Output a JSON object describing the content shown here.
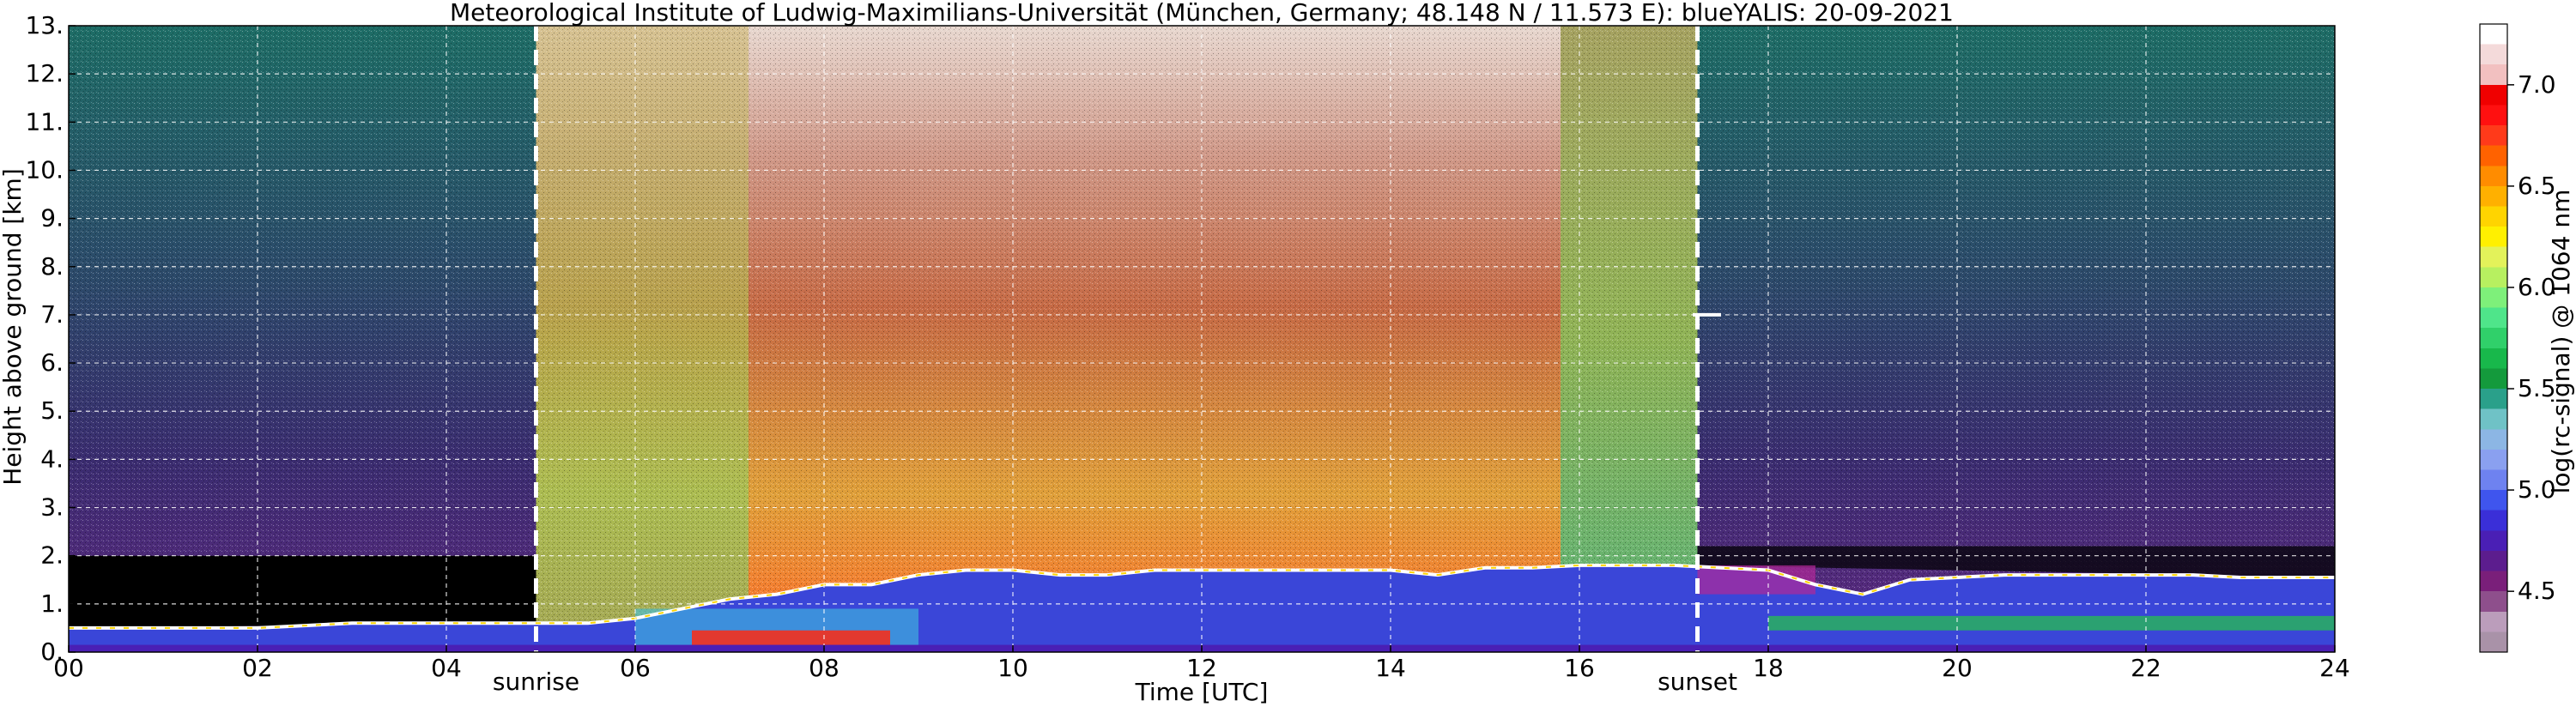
{
  "chart_data": {
    "type": "heatmap",
    "title": "Meteorological Institute of Ludwig-Maximilians-Universität (München, Germany; 48.148 N / 11.573 E):     blueYALIS: 20-09-2021",
    "xlabel": "Time [UTC]",
    "ylabel": "Height above ground [km]",
    "colorbar_label": "log(rc-signal) @ 1064 nm",
    "xlim": [
      0,
      24
    ],
    "ylim": [
      0,
      13
    ],
    "x_ticks": [
      {
        "value": 0,
        "label": "00"
      },
      {
        "value": 2,
        "label": "02"
      },
      {
        "value": 4,
        "label": "04"
      },
      {
        "value": 6,
        "label": "06"
      },
      {
        "value": 8,
        "label": "08"
      },
      {
        "value": 10,
        "label": "10"
      },
      {
        "value": 12,
        "label": "12"
      },
      {
        "value": 14,
        "label": "14"
      },
      {
        "value": 16,
        "label": "16"
      },
      {
        "value": 18,
        "label": "18"
      },
      {
        "value": 20,
        "label": "20"
      },
      {
        "value": 22,
        "label": "22"
      },
      {
        "value": 24,
        "label": "24"
      }
    ],
    "y_ticks": [
      {
        "value": 0,
        "label": "0."
      },
      {
        "value": 1,
        "label": "1."
      },
      {
        "value": 2,
        "label": "2."
      },
      {
        "value": 3,
        "label": "3."
      },
      {
        "value": 4,
        "label": "4."
      },
      {
        "value": 5,
        "label": "5."
      },
      {
        "value": 6,
        "label": "6."
      },
      {
        "value": 7,
        "label": "7."
      },
      {
        "value": 8,
        "label": "8."
      },
      {
        "value": 9,
        "label": "9."
      },
      {
        "value": 10,
        "label": "10."
      },
      {
        "value": 11,
        "label": "11."
      },
      {
        "value": 12,
        "label": "12."
      },
      {
        "value": 13,
        "label": "13."
      }
    ],
    "grid": true,
    "annotations": [
      {
        "label": "sunrise",
        "time": 4.95
      },
      {
        "label": "sunset",
        "time": 17.25
      }
    ],
    "colorbar": {
      "range": [
        4.2,
        7.3
      ],
      "ticks": [
        {
          "value": 4.5,
          "label": "4.5"
        },
        {
          "value": 5.0,
          "label": "5.0"
        },
        {
          "value": 5.5,
          "label": "5.5"
        },
        {
          "value": 6.0,
          "label": "6.0"
        },
        {
          "value": 6.5,
          "label": "6.5"
        },
        {
          "value": 7.0,
          "label": "7.0"
        }
      ],
      "colors": [
        "#a992a8",
        "#bb9dbb",
        "#8e4f8c",
        "#7a1f7a",
        "#5c1d8e",
        "#4a1fb5",
        "#3a2fd8",
        "#3f55ee",
        "#6e82f0",
        "#8aa0f0",
        "#8cb6e4",
        "#6fc2c6",
        "#2aa08a",
        "#149a3c",
        "#18b84b",
        "#30d06a",
        "#4fe58a",
        "#7ef07a",
        "#b7f060",
        "#e3f25a",
        "#fff000",
        "#ffd400",
        "#ffb000",
        "#ff8c00",
        "#ff6200",
        "#ff3a1a",
        "#ff1010",
        "#f00000",
        "#f2c0c0",
        "#f4dada",
        "#ffffff"
      ]
    },
    "structures": {
      "boundary_layer_top_km": [
        {
          "time": 0,
          "height": 0.5
        },
        {
          "time": 1,
          "height": 0.5
        },
        {
          "time": 2,
          "height": 0.5
        },
        {
          "time": 3,
          "height": 0.6
        },
        {
          "time": 4,
          "height": 0.6
        },
        {
          "time": 5,
          "height": 0.6
        },
        {
          "time": 5.5,
          "height": 0.6
        },
        {
          "time": 6,
          "height": 0.7
        },
        {
          "time": 6.5,
          "height": 0.9
        },
        {
          "time": 7,
          "height": 1.1
        },
        {
          "time": 7.5,
          "height": 1.2
        },
        {
          "time": 8,
          "height": 1.4
        },
        {
          "time": 8.5,
          "height": 1.4
        },
        {
          "time": 9,
          "height": 1.6
        },
        {
          "time": 9.5,
          "height": 1.7
        },
        {
          "time": 10,
          "height": 1.7
        },
        {
          "time": 10.5,
          "height": 1.6
        },
        {
          "time": 11,
          "height": 1.6
        },
        {
          "time": 11.5,
          "height": 1.7
        },
        {
          "time": 12,
          "height": 1.7
        },
        {
          "time": 12.5,
          "height": 1.7
        },
        {
          "time": 13,
          "height": 1.7
        },
        {
          "time": 13.5,
          "height": 1.7
        },
        {
          "time": 14,
          "height": 1.7
        },
        {
          "time": 14.5,
          "height": 1.6
        },
        {
          "time": 15,
          "height": 1.75
        },
        {
          "time": 15.5,
          "height": 1.75
        },
        {
          "time": 16,
          "height": 1.8
        },
        {
          "time": 16.5,
          "height": 1.8
        },
        {
          "time": 17,
          "height": 1.8
        },
        {
          "time": 17.5,
          "height": 1.75
        },
        {
          "time": 18,
          "height": 1.7
        },
        {
          "time": 18.5,
          "height": 1.4
        },
        {
          "time": 19,
          "height": 1.2
        },
        {
          "time": 19.5,
          "height": 1.5
        },
        {
          "time": 20,
          "height": 1.55
        },
        {
          "time": 20.5,
          "height": 1.6
        },
        {
          "time": 21,
          "height": 1.6
        },
        {
          "time": 21.5,
          "height": 1.6
        },
        {
          "time": 22,
          "height": 1.6
        },
        {
          "time": 22.5,
          "height": 1.6
        },
        {
          "time": 23,
          "height": 1.55
        },
        {
          "time": 24,
          "height": 1.55
        }
      ],
      "cloud_layer": {
        "time_start": 17.2,
        "time_end": 17.5,
        "height": 7.0
      }
    }
  }
}
